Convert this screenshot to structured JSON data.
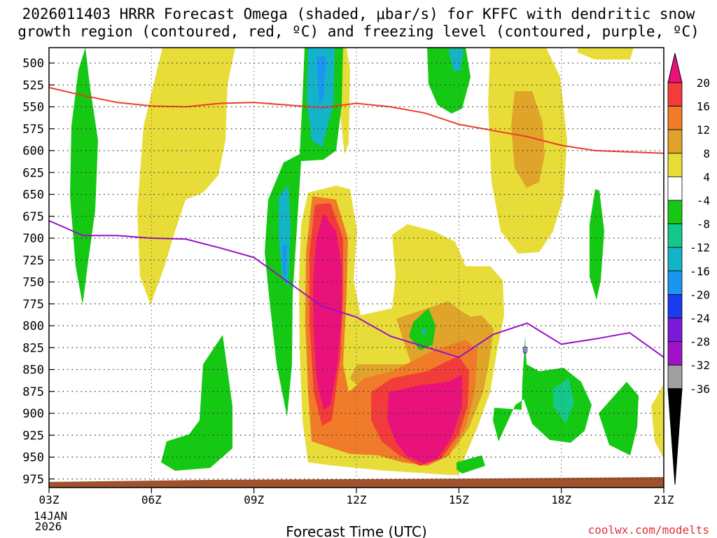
{
  "chart_data": {
    "type": "contour",
    "title_line1": "2026011403 HRRR Forecast Omega (shaded, μbar/s) for KFFC with dendritic snow",
    "title_line2": "growth region (contoured, red, ºC) and freezing level (contoured, purple, ºC)",
    "xlabel": "Forecast Time (UTC)",
    "credit": "coolwx.com/modelts",
    "x_ticks": [
      "03Z",
      "06Z",
      "09Z",
      "12Z",
      "15Z",
      "18Z",
      "21Z"
    ],
    "x_ticks_hours": [
      3,
      6,
      9,
      12,
      15,
      18,
      21
    ],
    "x_range": [
      3,
      21
    ],
    "date_line1": "14JAN",
    "date_line2": "2026",
    "y_ticks": [
      "500",
      "525",
      "550",
      "575",
      "600",
      "625",
      "650",
      "675",
      "700",
      "725",
      "750",
      "775",
      "800",
      "825",
      "850",
      "875",
      "900",
      "925",
      "950",
      "975"
    ],
    "colorbar": {
      "levels": [
        "20",
        "16",
        "12",
        "8",
        "4",
        "-4",
        "-8",
        "-12",
        "-16",
        "-20",
        "-24",
        "-28",
        "-32",
        "-36"
      ],
      "colors": [
        "#e8127a",
        "#f23c3c",
        "#f07b28",
        "#e0a42a",
        "#e8dd38",
        "#ffffff",
        "#14c814",
        "#14c88c",
        "#14b4c8",
        "#1a96f0",
        "#1a3cf0",
        "#7a1ad8",
        "#a012c8",
        "#a0a0a0",
        "#000000"
      ]
    },
    "dgz_top_hpa": [
      528,
      537,
      545,
      549,
      550,
      546,
      545,
      548,
      551,
      546,
      550,
      557,
      570,
      577,
      584,
      594,
      600,
      603
    ],
    "dgz_hours": [
      3,
      4,
      5,
      6,
      7,
      8,
      9,
      10,
      11,
      12,
      13,
      14,
      15,
      16,
      17,
      18,
      19,
      21
    ],
    "freezing_level_label": "0",
    "freezing_level_hpa": [
      680,
      697,
      697,
      700,
      701,
      711,
      722,
      750,
      778,
      790,
      812,
      836,
      810,
      797,
      821,
      815,
      808,
      836
    ],
    "freezing_level_hours": [
      3,
      4,
      5,
      6,
      7,
      8,
      9,
      10,
      11,
      12,
      13,
      15,
      16,
      17,
      18,
      19,
      20,
      21
    ]
  }
}
